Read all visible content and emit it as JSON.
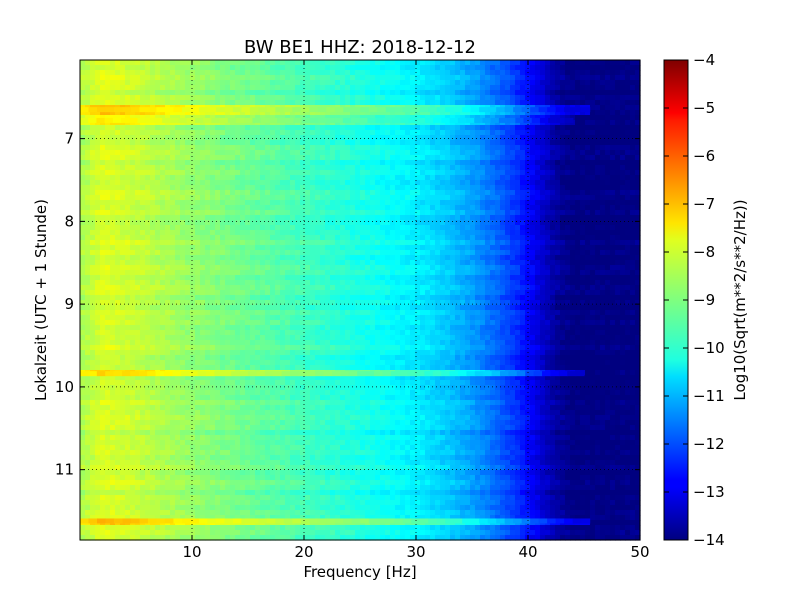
{
  "chart_data": {
    "type": "heatmap",
    "title": "BW BE1 HHZ: 2018-12-12",
    "xlabel": "Frequency [Hz]",
    "ylabel": "Lokalzeit (UTC + 1 Stunde)",
    "xlim": [
      0,
      50
    ],
    "ylim": [
      11.85,
      6.05
    ],
    "x_ticks": [
      10,
      20,
      30,
      40,
      50
    ],
    "x_tick_labels": [
      "10",
      "20",
      "30",
      "40",
      "50"
    ],
    "y_ticks": [
      7,
      8,
      9,
      10,
      11
    ],
    "y_tick_labels": [
      "7",
      "8",
      "9",
      "10",
      "11"
    ],
    "y_axis_inverted": true,
    "grid": true,
    "colormap": "jet",
    "colorbar": {
      "label": "Log10(Sqrt(m**2/s**2/Hz))",
      "range": [
        -14,
        -4
      ],
      "ticks": [
        -4,
        -5,
        -6,
        -7,
        -8,
        -9,
        -10,
        -11,
        -12,
        -13,
        -14
      ],
      "tick_labels": [
        "−4",
        "−5",
        "−6",
        "−7",
        "−8",
        "−9",
        "−10",
        "−11",
        "−12",
        "−13",
        "−14"
      ]
    },
    "spectrum_profile": {
      "frequency_hz": [
        0,
        2,
        5,
        8,
        10,
        15,
        20,
        25,
        30,
        33,
        35,
        37,
        39,
        41,
        42.5,
        44,
        45,
        50
      ],
      "level": [
        -8.6,
        -8.1,
        -8.3,
        -8.6,
        -8.8,
        -9.2,
        -9.6,
        -10.0,
        -10.4,
        -10.8,
        -11.2,
        -11.7,
        -12.3,
        -13.1,
        -13.7,
        -14.0,
        -14.0,
        -14.0
      ]
    },
    "bands": [
      {
        "time": 6.65,
        "fmax": 45.5,
        "level_offset": 0.9
      },
      {
        "time": 6.78,
        "fmax": 44.0,
        "level_offset": 0.5
      },
      {
        "time": 9.84,
        "fmax": 45.0,
        "level_offset": 0.8
      },
      {
        "time": 11.62,
        "fmax": 45.5,
        "level_offset": 1.1
      }
    ]
  }
}
